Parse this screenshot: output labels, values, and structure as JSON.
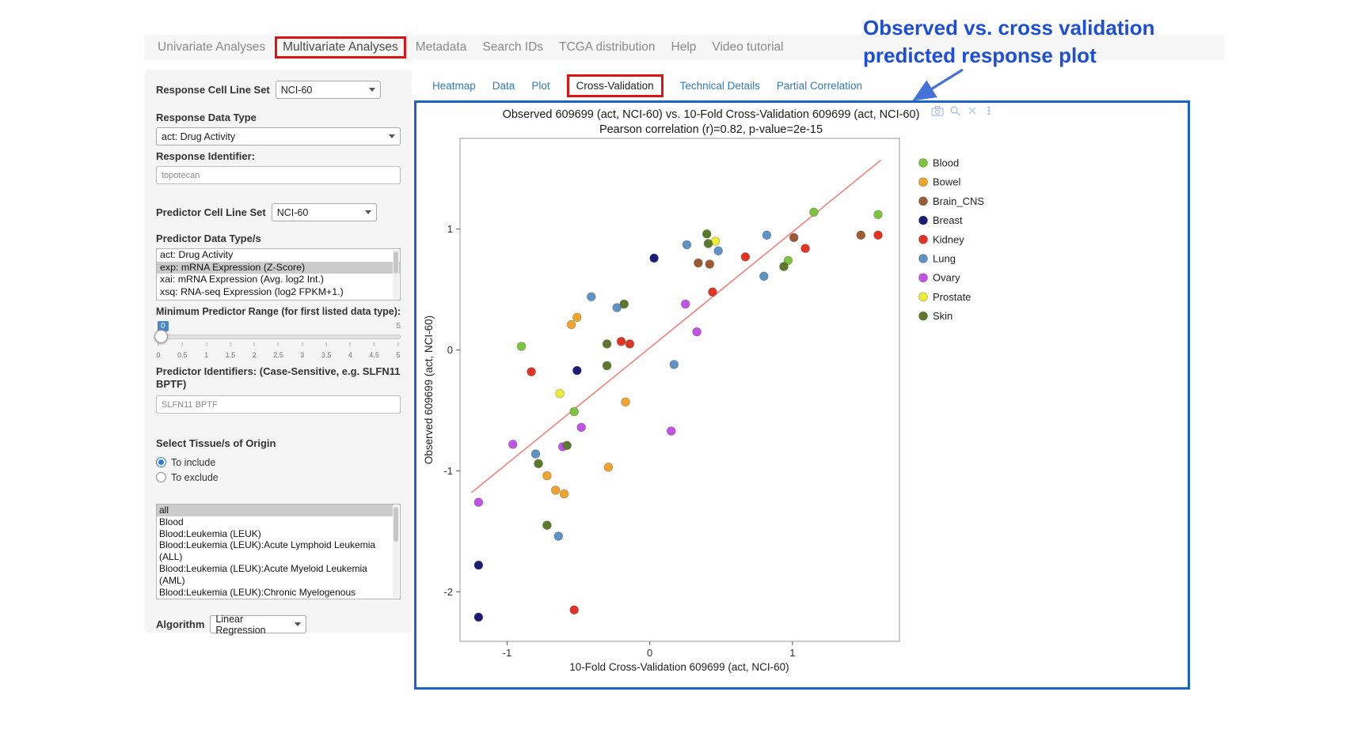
{
  "annotation": {
    "line1": "Observed vs. cross validation",
    "line2": "predicted response plot"
  },
  "colors": {
    "highlight_box_red": "#dd1414",
    "plot_border_blue": "#1b63c8",
    "annotation_blue": "#1d4fd6",
    "link_blue": "#337ab7"
  },
  "nav": {
    "tabs": [
      {
        "label": "Univariate Analyses",
        "active": false,
        "highlighted": false
      },
      {
        "label": "Multivariate Analyses",
        "active": true,
        "highlighted": true
      },
      {
        "label": "Metadata",
        "active": false,
        "highlighted": false
      },
      {
        "label": "Search IDs",
        "active": false,
        "highlighted": false
      },
      {
        "label": "TCGA distribution",
        "active": false,
        "highlighted": false
      },
      {
        "label": "Help",
        "active": false,
        "highlighted": false
      },
      {
        "label": "Video tutorial",
        "active": false,
        "highlighted": false
      }
    ]
  },
  "sidebar": {
    "response_cell_line_set": {
      "label": "Response Cell Line Set",
      "value": "NCI-60"
    },
    "response_data_type": {
      "label": "Response Data Type",
      "value": "act: Drug Activity"
    },
    "response_identifier": {
      "label": "Response Identifier:",
      "value": "topotecan"
    },
    "predictor_cell_line_set": {
      "label": "Predictor Cell Line Set",
      "value": "NCI-60"
    },
    "predictor_data_types": {
      "label": "Predictor Data Type/s",
      "options": [
        "act: Drug Activity",
        "exp: mRNA Expression (Z-Score)",
        "xai: mRNA Expression (Avg. log2 Int.)",
        "xsq: RNA-seq Expression (log2 FPKM+1.)"
      ],
      "selected": "exp: mRNA Expression (Z-Score)"
    },
    "min_predictor_range": {
      "label": "Minimum Predictor Range (for first listed data type):",
      "value": "0",
      "max_label": "5",
      "ticks": [
        "0",
        "0.5",
        "1",
        "1.5",
        "2",
        "2.5",
        "3",
        "3.5",
        "4",
        "4.5",
        "5"
      ]
    },
    "predictor_identifiers": {
      "label": "Predictor Identifiers: (Case-Sensitive, e.g. SLFN11 BPTF)",
      "value": "SLFN11 BPTF"
    },
    "tissue_origin": {
      "label": "Select Tissue/s of Origin",
      "radio_include": "To include",
      "radio_exclude": "To exclude",
      "selected_radio": "To include",
      "options": [
        "all",
        "Blood",
        "Blood:Leukemia (LEUK)",
        "Blood:Leukemia (LEUK):Acute Lymphoid Leukemia (ALL)",
        "Blood:Leukemia (LEUK):Acute Myeloid Leukemia (AML)",
        "Blood:Leukemia (LEUK):Chronic Myelogenous Leukemia (CML)"
      ],
      "selected_option": "all"
    },
    "algorithm": {
      "label": "Algorithm",
      "value": "Linear Regression"
    }
  },
  "results": {
    "tabs": [
      {
        "label": "Heatmap",
        "active": false,
        "highlighted": false
      },
      {
        "label": "Data",
        "active": false,
        "highlighted": false
      },
      {
        "label": "Plot",
        "active": false,
        "highlighted": false
      },
      {
        "label": "Cross-Validation",
        "active": true,
        "highlighted": true
      },
      {
        "label": "Technical Details",
        "active": false,
        "highlighted": false
      },
      {
        "label": "Partial Correlation",
        "active": false,
        "highlighted": false
      }
    ],
    "toolbar_icons": [
      "camera",
      "zoom",
      "close",
      "more"
    ]
  },
  "chart_data": {
    "type": "scatter",
    "title": "Observed 609699 (act, NCI-60) vs. 10-Fold Cross-Validation 609699 (act, NCI-60)",
    "subtitle": "Pearson correlation (r)=0.82, p-value=2e-15",
    "xlabel": "10-Fold Cross-Validation 609699 (act, NCI-60)",
    "ylabel": "Observed 609699 (act, NCI-60)",
    "xlim": [
      -1.33,
      1.75
    ],
    "ylim": [
      -2.41,
      1.75
    ],
    "xticks": [
      -1,
      0,
      1
    ],
    "yticks": [
      -2,
      -1,
      0,
      1
    ],
    "grid": false,
    "legend_position": "right",
    "regression_line": {
      "x": [
        -1.25,
        1.62
      ],
      "y": [
        -1.18,
        1.57
      ],
      "color": "#f4807c"
    },
    "series": [
      {
        "name": "Blood",
        "color": "#7cc43e",
        "points": [
          [
            -0.9,
            0.03
          ],
          [
            -0.53,
            -0.51
          ],
          [
            0.97,
            0.74
          ],
          [
            1.15,
            1.14
          ],
          [
            1.6,
            1.12
          ]
        ]
      },
      {
        "name": "Bowel",
        "color": "#f0a42e",
        "points": [
          [
            -0.55,
            0.21
          ],
          [
            -0.51,
            0.27
          ],
          [
            -0.72,
            -1.04
          ],
          [
            -0.66,
            -1.16
          ],
          [
            -0.6,
            -1.19
          ],
          [
            -0.29,
            -0.97
          ],
          [
            -0.17,
            -0.43
          ]
        ]
      },
      {
        "name": "Brain_CNS",
        "color": "#9e5b33",
        "points": [
          [
            0.34,
            0.72
          ],
          [
            0.42,
            0.71
          ],
          [
            1.01,
            0.93
          ],
          [
            1.48,
            0.95
          ]
        ]
      },
      {
        "name": "Breast",
        "color": "#1c1c78",
        "points": [
          [
            -1.2,
            -1.78
          ],
          [
            -1.2,
            -2.21
          ],
          [
            -0.51,
            -0.17
          ],
          [
            0.03,
            0.76
          ]
        ]
      },
      {
        "name": "Kidney",
        "color": "#e23323",
        "points": [
          [
            -0.83,
            -0.18
          ],
          [
            -0.2,
            0.07
          ],
          [
            -0.14,
            0.05
          ],
          [
            0.44,
            0.48
          ],
          [
            0.67,
            0.77
          ],
          [
            1.09,
            0.84
          ],
          [
            1.6,
            0.95
          ],
          [
            -0.53,
            -2.15
          ]
        ]
      },
      {
        "name": "Lung",
        "color": "#5e93c5",
        "points": [
          [
            -0.8,
            -0.86
          ],
          [
            -0.64,
            -1.54
          ],
          [
            -0.41,
            0.44
          ],
          [
            -0.23,
            0.35
          ],
          [
            0.17,
            -0.12
          ],
          [
            0.26,
            0.87
          ],
          [
            0.48,
            0.82
          ],
          [
            0.82,
            0.95
          ],
          [
            0.8,
            0.61
          ]
        ]
      },
      {
        "name": "Ovary",
        "color": "#c253e8",
        "points": [
          [
            -1.2,
            -1.26
          ],
          [
            -0.96,
            -0.78
          ],
          [
            -0.61,
            -0.8
          ],
          [
            -0.48,
            -0.64
          ],
          [
            0.15,
            -0.67
          ],
          [
            0.25,
            0.38
          ],
          [
            0.33,
            0.15
          ]
        ]
      },
      {
        "name": "Prostate",
        "color": "#efec35",
        "points": [
          [
            -0.63,
            -0.36
          ],
          [
            0.46,
            0.9
          ]
        ]
      },
      {
        "name": "Skin",
        "color": "#5d7a2c",
        "points": [
          [
            -0.78,
            -0.94
          ],
          [
            -0.72,
            -1.45
          ],
          [
            -0.58,
            -0.79
          ],
          [
            -0.3,
            -0.13
          ],
          [
            -0.3,
            0.05
          ],
          [
            -0.18,
            0.38
          ],
          [
            0.4,
            0.96
          ],
          [
            0.41,
            0.88
          ],
          [
            0.94,
            0.69
          ]
        ]
      }
    ]
  }
}
